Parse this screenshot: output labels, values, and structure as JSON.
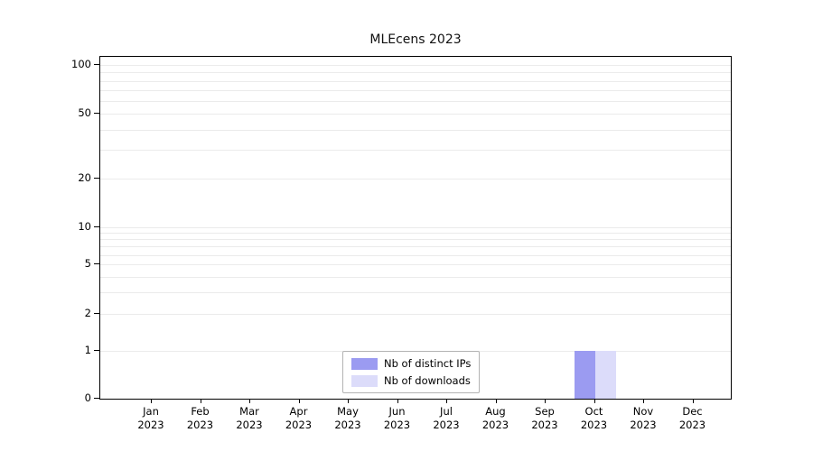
{
  "chart_data": {
    "type": "bar",
    "title": "MLEcens 2023",
    "categories": [
      {
        "month": "Jan",
        "year": "2023"
      },
      {
        "month": "Feb",
        "year": "2023"
      },
      {
        "month": "Mar",
        "year": "2023"
      },
      {
        "month": "Apr",
        "year": "2023"
      },
      {
        "month": "May",
        "year": "2023"
      },
      {
        "month": "Jun",
        "year": "2023"
      },
      {
        "month": "Jul",
        "year": "2023"
      },
      {
        "month": "Aug",
        "year": "2023"
      },
      {
        "month": "Sep",
        "year": "2023"
      },
      {
        "month": "Oct",
        "year": "2023"
      },
      {
        "month": "Nov",
        "year": "2023"
      },
      {
        "month": "Dec",
        "year": "2023"
      }
    ],
    "series": [
      {
        "name": "Nb of distinct IPs",
        "color": "#9b9bf1",
        "values": [
          0,
          0,
          0,
          0,
          0,
          0,
          0,
          0,
          0,
          1,
          0,
          0
        ]
      },
      {
        "name": "Nb of downloads",
        "color": "#dcdcfa",
        "values": [
          0,
          0,
          0,
          0,
          0,
          0,
          0,
          0,
          0,
          1,
          0,
          0
        ]
      }
    ],
    "yscale": "symlog",
    "yticks": [
      0,
      1,
      2,
      5,
      10,
      20,
      50,
      100
    ],
    "gridline_values": [
      1,
      2,
      3,
      4,
      5,
      6,
      7,
      8,
      9,
      10,
      20,
      30,
      40,
      50,
      60,
      70,
      80,
      90,
      100
    ],
    "ylim": [
      0,
      120
    ],
    "grid": "horizontal",
    "legend_position": "lower center"
  }
}
